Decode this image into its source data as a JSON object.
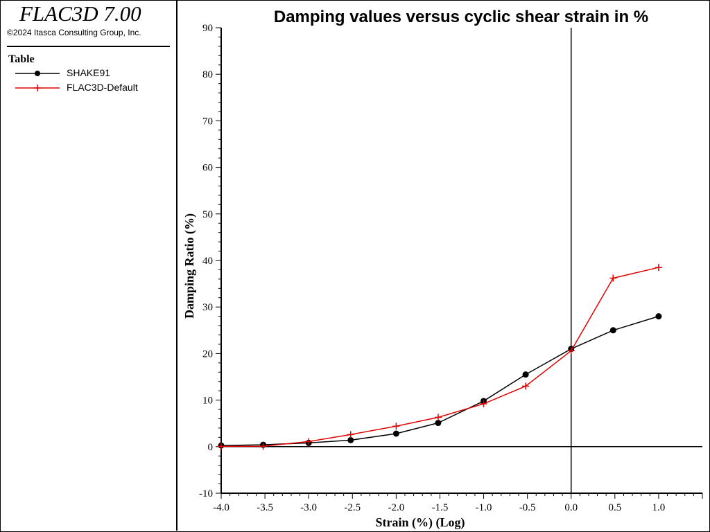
{
  "app": {
    "title": "FLAC3D 7.00",
    "copyright": "©2024 Itasca Consulting Group, Inc."
  },
  "legend": {
    "heading": "Table",
    "items": [
      {
        "label": "SHAKE91",
        "color": "#000000",
        "marker": "circle"
      },
      {
        "label": "FLAC3D-Default",
        "color": "#e00000",
        "marker": "plus"
      }
    ]
  },
  "chart_data": {
    "type": "line",
    "title": "Damping values versus cyclic shear strain in %",
    "xlabel": "Strain (%) (Log)",
    "ylabel": "Damping Ratio (%)",
    "xlim": [
      -4.0,
      1.5
    ],
    "ylim": [
      -10,
      90
    ],
    "x_ticks": [
      "-4.0",
      "-3.5",
      "-3.0",
      "-2.5",
      "-2.0",
      "-1.5",
      "-1.0",
      "-0.5",
      "0.0",
      "0.5",
      "1.0"
    ],
    "x_tick_values": [
      -4.0,
      -3.5,
      -3.0,
      -2.5,
      -2.0,
      -1.5,
      -1.0,
      -0.5,
      0.0,
      0.5,
      1.0
    ],
    "y_ticks": [
      "-10",
      "0",
      "10",
      "20",
      "30",
      "40",
      "50",
      "60",
      "70",
      "80",
      "90"
    ],
    "y_tick_values": [
      -10,
      0,
      10,
      20,
      30,
      40,
      50,
      60,
      70,
      80,
      90
    ],
    "grid": false,
    "legend_placement": "left-panel",
    "series": [
      {
        "name": "SHAKE91",
        "color": "#000000",
        "marker": "circle",
        "x": [
          -4.0,
          -3.52,
          -3.0,
          -2.52,
          -2.0,
          -1.52,
          -1.0,
          -0.52,
          0.0,
          0.48,
          1.0
        ],
        "y": [
          0.25,
          0.4,
          0.8,
          1.4,
          2.8,
          5.1,
          9.8,
          15.5,
          21.0,
          25.0,
          28.0
        ]
      },
      {
        "name": "FLAC3D-Default",
        "color": "#e00000",
        "marker": "plus",
        "x": [
          -4.0,
          -3.52,
          -3.0,
          -2.52,
          -2.0,
          -1.52,
          -1.0,
          -0.52,
          0.0,
          0.48,
          1.0
        ],
        "y": [
          0.05,
          0.1,
          1.1,
          2.6,
          4.4,
          6.3,
          9.2,
          13.0,
          20.6,
          36.2,
          38.5
        ]
      }
    ]
  }
}
